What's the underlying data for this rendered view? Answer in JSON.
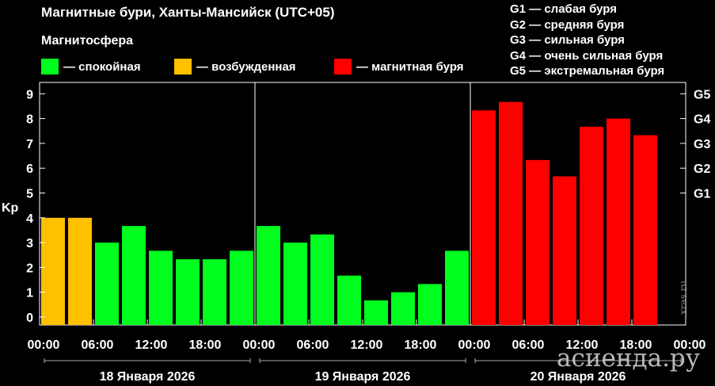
{
  "title": "Магнитные бури, Ханты-Мансийск (UTC+05)",
  "legend": {
    "heading": "Магнитосфера",
    "items": [
      {
        "label": "— спокойная",
        "color": "#00ff1e"
      },
      {
        "label": "— возбужденная",
        "color": "#ffc000"
      },
      {
        "label": "— магнитная буря",
        "color": "#ff0000"
      }
    ]
  },
  "g_scale": [
    "G1 — слабая буря",
    "G2 — средняя буря",
    "G3 — сильная буря",
    "G4 — очень сильная буря",
    "G5 — экстремальная буря"
  ],
  "watermark": {
    "site": "xras.ru",
    "brand": "асиенда.ру"
  },
  "chart_data": {
    "type": "bar",
    "ylabel": "Kp",
    "ylim": [
      0,
      9
    ],
    "y_ticks": [
      "0",
      "1",
      "2",
      "3",
      "4",
      "5",
      "6",
      "7",
      "8",
      "9"
    ],
    "right_ticks": [
      {
        "label": "G1",
        "y": 5
      },
      {
        "label": "G2",
        "y": 6
      },
      {
        "label": "G3",
        "y": 7
      },
      {
        "label": "G4",
        "y": 8
      },
      {
        "label": "G5",
        "y": 9
      }
    ],
    "x_ticks": [
      "00:00",
      "06:00",
      "12:00",
      "18:00",
      "00:00",
      "06:00",
      "12:00",
      "18:00",
      "00:00",
      "06:00",
      "12:00",
      "18:00",
      "00:00"
    ],
    "days": [
      "18 Января 2026",
      "19 Января 2026",
      "20 Января 2026"
    ],
    "grid": false,
    "colors": {
      "quiet": "#00ff1e",
      "active": "#ffc000",
      "storm": "#ff0000"
    },
    "values": [
      4.0,
      4.0,
      3.0,
      3.67,
      2.67,
      2.33,
      2.33,
      2.67,
      3.67,
      3.0,
      3.33,
      1.67,
      0.67,
      1.0,
      1.33,
      2.67,
      8.33,
      8.67,
      6.33,
      5.67,
      7.67,
      8.0,
      7.33
    ]
  }
}
